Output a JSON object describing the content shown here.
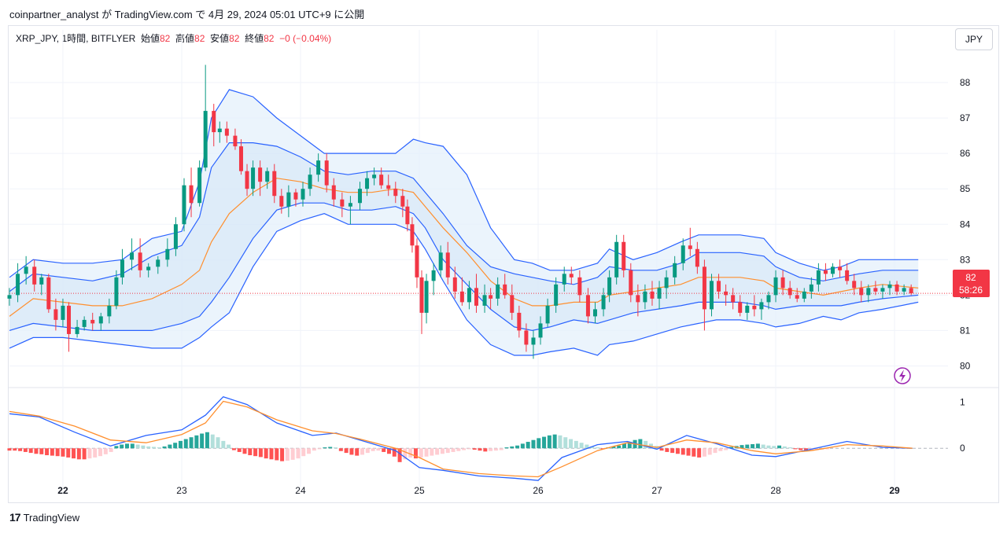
{
  "header": {
    "text": "coinpartner_analyst が TradingView.com で 4月 29, 2024 05:01 UTC+9 に公開"
  },
  "legend": {
    "symbol": "XRP_JPY, 1時間, BITFLYER",
    "open_label": "始値",
    "open_value": "82",
    "high_label": "高値",
    "high_value": "82",
    "low_label": "安値",
    "low_value": "82",
    "close_label": "終値",
    "close_value": "82",
    "change": "−0 (−0.04%)"
  },
  "currency_button": "JPY",
  "price_badge": {
    "price": "82",
    "countdown": "58:26"
  },
  "footer": {
    "brand": "TradingView",
    "logo": "17"
  },
  "colors": {
    "up": "#089981",
    "down": "#f23645",
    "band_outer": "#2962ff",
    "basis": "#ff8f2e",
    "band_fill": "#e3f0fb",
    "macd_line": "#2962ff",
    "signal_line": "#ff8f2e"
  },
  "chart_data": {
    "type": "candlestick",
    "price_axis": {
      "ticks": [
        80,
        81,
        82,
        83,
        84,
        85,
        86,
        87,
        88
      ],
      "range": [
        79.5,
        88.6
      ]
    },
    "x_axis": {
      "day_labels": [
        "22",
        "23",
        "24",
        "25",
        "26",
        "27",
        "28",
        "29"
      ],
      "range_days": [
        21.55,
        29.45
      ]
    },
    "current_price": 82.05,
    "bands_days": [
      21.55,
      21.75,
      22.0,
      22.25,
      22.5,
      22.75,
      23.0,
      23.15,
      23.25,
      23.4,
      23.6,
      23.8,
      24.0,
      24.2,
      24.4,
      24.6,
      24.8,
      24.95,
      25.05,
      25.2,
      25.4,
      25.6,
      25.8,
      25.95,
      26.1,
      26.3,
      26.5,
      26.6,
      26.8,
      27.0,
      27.2,
      27.35,
      27.5,
      27.7,
      27.9,
      28.0,
      28.2,
      28.4,
      28.55,
      28.7,
      28.9,
      29.2
    ],
    "upper_outer": [
      82.5,
      83.0,
      82.9,
      82.9,
      83.0,
      83.6,
      83.8,
      85.2,
      87.0,
      87.8,
      87.6,
      87.0,
      86.5,
      86.0,
      86.0,
      86.0,
      86.0,
      86.4,
      86.3,
      86.2,
      85.4,
      83.9,
      83.0,
      82.9,
      82.7,
      82.7,
      82.9,
      83.3,
      83.0,
      83.2,
      83.5,
      83.7,
      83.7,
      83.7,
      83.6,
      83.2,
      82.9,
      82.7,
      82.8,
      83.0,
      83.0,
      83.0
    ],
    "upper_inner": [
      82.1,
      82.6,
      82.5,
      82.4,
      82.6,
      83.1,
      83.4,
      84.2,
      85.6,
      86.3,
      86.3,
      86.2,
      85.9,
      85.5,
      85.4,
      85.5,
      85.5,
      85.3,
      84.9,
      84.3,
      83.4,
      82.8,
      82.6,
      82.5,
      82.4,
      82.3,
      82.5,
      82.8,
      82.7,
      82.7,
      82.9,
      83.2,
      83.2,
      83.2,
      83.1,
      82.8,
      82.5,
      82.4,
      82.5,
      82.6,
      82.7,
      82.7
    ],
    "basis": [
      81.4,
      81.9,
      81.8,
      81.7,
      81.7,
      81.9,
      82.3,
      82.7,
      83.5,
      84.3,
      84.9,
      85.3,
      85.2,
      85.0,
      84.9,
      84.9,
      85.0,
      84.9,
      84.5,
      83.9,
      83.2,
      82.4,
      81.9,
      81.7,
      81.7,
      81.8,
      81.8,
      82.0,
      82.1,
      82.2,
      82.3,
      82.5,
      82.5,
      82.5,
      82.4,
      82.2,
      82.1,
      82.0,
      82.1,
      82.2,
      82.3,
      82.2
    ],
    "lower_inner": [
      81.0,
      81.2,
      81.1,
      81.0,
      81.0,
      81.0,
      81.2,
      81.4,
      81.8,
      82.5,
      83.6,
      84.4,
      84.6,
      84.6,
      84.4,
      84.4,
      84.5,
      84.3,
      83.9,
      83.0,
      82.3,
      81.6,
      81.1,
      81.0,
      81.1,
      81.3,
      81.2,
      81.3,
      81.5,
      81.6,
      81.7,
      81.8,
      81.8,
      81.8,
      81.7,
      81.6,
      81.7,
      81.7,
      81.7,
      81.8,
      81.9,
      82.0
    ],
    "lower_outer": [
      80.5,
      80.8,
      80.8,
      80.7,
      80.6,
      80.5,
      80.5,
      80.8,
      81.1,
      81.5,
      82.8,
      83.8,
      84.1,
      84.3,
      84.0,
      84.0,
      84.0,
      83.8,
      83.3,
      82.4,
      81.3,
      80.6,
      80.3,
      80.3,
      80.4,
      80.5,
      80.3,
      80.6,
      80.7,
      80.9,
      81.1,
      81.2,
      81.3,
      81.3,
      81.2,
      81.1,
      81.2,
      81.4,
      81.3,
      81.5,
      81.6,
      81.8
    ],
    "candles": [
      [
        21.55,
        81.9,
        82.2,
        81.7,
        82.0
      ],
      [
        21.62,
        82.0,
        82.9,
        81.8,
        82.6
      ],
      [
        21.69,
        82.6,
        83.1,
        82.3,
        82.8
      ],
      [
        21.76,
        82.8,
        83.0,
        82.1,
        82.3
      ],
      [
        21.82,
        82.3,
        82.6,
        82.0,
        82.5
      ],
      [
        21.88,
        82.5,
        82.6,
        81.5,
        81.6
      ],
      [
        21.94,
        81.6,
        81.9,
        81.0,
        81.3
      ],
      [
        22.0,
        81.3,
        81.9,
        81.1,
        81.7
      ],
      [
        22.05,
        81.7,
        81.8,
        80.4,
        80.9
      ],
      [
        22.12,
        80.9,
        81.3,
        80.8,
        81.1
      ],
      [
        22.18,
        81.1,
        81.4,
        81.0,
        81.3
      ],
      [
        22.25,
        81.3,
        81.5,
        81.0,
        81.2
      ],
      [
        22.32,
        81.2,
        81.5,
        81.0,
        81.4
      ],
      [
        22.39,
        81.4,
        81.9,
        81.2,
        81.7
      ],
      [
        22.45,
        81.7,
        82.7,
        81.6,
        82.5
      ],
      [
        22.5,
        82.5,
        83.3,
        82.3,
        83.0
      ],
      [
        22.58,
        83.0,
        83.6,
        82.7,
        83.2
      ],
      [
        22.65,
        83.2,
        83.6,
        82.5,
        82.7
      ],
      [
        22.72,
        82.7,
        82.9,
        82.5,
        82.8
      ],
      [
        22.8,
        82.8,
        83.1,
        82.6,
        83.0
      ],
      [
        22.88,
        83.0,
        83.6,
        82.8,
        83.3
      ],
      [
        22.95,
        83.3,
        84.2,
        83.1,
        84.0
      ],
      [
        23.02,
        84.0,
        85.3,
        83.8,
        85.1
      ],
      [
        23.08,
        85.1,
        85.6,
        84.2,
        84.6
      ],
      [
        23.15,
        84.6,
        85.8,
        84.5,
        85.6
      ],
      [
        23.2,
        85.6,
        88.5,
        85.5,
        87.2
      ],
      [
        23.27,
        87.2,
        87.4,
        86.2,
        86.6
      ],
      [
        23.32,
        86.6,
        86.9,
        86.3,
        86.7
      ],
      [
        23.38,
        86.7,
        86.9,
        86.3,
        86.5
      ],
      [
        23.45,
        86.5,
        86.7,
        86.1,
        86.2
      ],
      [
        23.5,
        86.2,
        86.4,
        85.4,
        85.5
      ],
      [
        23.55,
        85.5,
        85.7,
        84.8,
        85.0
      ],
      [
        23.6,
        85.0,
        85.8,
        84.8,
        85.6
      ],
      [
        23.66,
        85.6,
        85.8,
        84.8,
        85.2
      ],
      [
        23.72,
        85.2,
        85.6,
        85.0,
        85.5
      ],
      [
        23.78,
        85.5,
        85.7,
        84.6,
        84.8
      ],
      [
        23.84,
        84.8,
        85.0,
        84.3,
        84.5
      ],
      [
        23.9,
        84.5,
        85.1,
        84.2,
        84.9
      ],
      [
        23.96,
        84.9,
        85.0,
        84.5,
        84.7
      ],
      [
        24.02,
        84.7,
        85.2,
        84.5,
        85.0
      ],
      [
        24.08,
        85.0,
        85.6,
        84.8,
        85.4
      ],
      [
        24.15,
        85.4,
        86.0,
        85.2,
        85.8
      ],
      [
        24.22,
        85.8,
        86.0,
        84.9,
        85.1
      ],
      [
        24.28,
        85.1,
        85.3,
        84.5,
        84.7
      ],
      [
        24.35,
        84.7,
        84.9,
        84.2,
        84.5
      ],
      [
        24.42,
        84.5,
        84.8,
        84.0,
        84.6
      ],
      [
        24.5,
        84.6,
        85.2,
        84.4,
        85.0
      ],
      [
        24.56,
        85.0,
        85.5,
        84.8,
        85.3
      ],
      [
        24.62,
        85.3,
        85.6,
        85.1,
        85.4
      ],
      [
        24.68,
        85.4,
        85.6,
        85.0,
        85.1
      ],
      [
        24.74,
        85.1,
        85.4,
        84.8,
        85.0
      ],
      [
        24.8,
        85.0,
        85.2,
        84.6,
        84.8
      ],
      [
        24.86,
        84.8,
        85.0,
        84.2,
        84.5
      ],
      [
        24.9,
        84.5,
        84.7,
        83.8,
        84.0
      ],
      [
        24.94,
        84.0,
        84.2,
        83.2,
        83.4
      ],
      [
        24.98,
        83.4,
        83.6,
        82.2,
        82.5
      ],
      [
        25.02,
        82.5,
        82.7,
        80.9,
        81.5
      ],
      [
        25.06,
        81.5,
        82.6,
        81.2,
        82.4
      ],
      [
        25.12,
        82.4,
        82.9,
        82.0,
        82.7
      ],
      [
        25.18,
        82.7,
        83.4,
        82.5,
        83.2
      ],
      [
        25.24,
        83.2,
        83.5,
        82.3,
        82.5
      ],
      [
        25.3,
        82.5,
        82.8,
        81.9,
        82.1
      ],
      [
        25.36,
        82.1,
        82.5,
        81.7,
        81.8
      ],
      [
        25.42,
        81.8,
        82.4,
        81.6,
        82.2
      ],
      [
        25.48,
        82.2,
        82.6,
        81.5,
        81.7
      ],
      [
        25.55,
        81.7,
        82.3,
        81.5,
        82.0
      ],
      [
        25.6,
        82.0,
        82.2,
        81.6,
        81.9
      ],
      [
        25.66,
        81.9,
        82.5,
        81.7,
        82.3
      ],
      [
        25.72,
        82.3,
        82.6,
        81.9,
        82.0
      ],
      [
        25.78,
        82.0,
        82.3,
        81.3,
        81.5
      ],
      [
        25.84,
        81.5,
        81.7,
        80.8,
        81.0
      ],
      [
        25.9,
        81.0,
        81.2,
        80.4,
        80.6
      ],
      [
        25.96,
        80.6,
        81.0,
        80.2,
        80.8
      ],
      [
        26.02,
        80.8,
        81.4,
        80.6,
        81.2
      ],
      [
        26.08,
        81.2,
        81.9,
        81.1,
        81.7
      ],
      [
        26.15,
        81.7,
        82.5,
        81.5,
        82.3
      ],
      [
        26.22,
        82.3,
        82.8,
        82.1,
        82.6
      ],
      [
        26.28,
        82.6,
        82.8,
        82.3,
        82.5
      ],
      [
        26.35,
        82.5,
        82.7,
        81.8,
        82.0
      ],
      [
        26.42,
        82.0,
        82.2,
        81.2,
        81.4
      ],
      [
        26.48,
        81.4,
        81.8,
        81.2,
        81.6
      ],
      [
        26.55,
        81.6,
        82.2,
        81.4,
        82.0
      ],
      [
        26.6,
        82.0,
        82.7,
        81.8,
        82.5
      ],
      [
        26.66,
        82.5,
        83.7,
        82.3,
        83.5
      ],
      [
        26.72,
        83.5,
        83.7,
        82.5,
        82.7
      ],
      [
        26.78,
        82.7,
        82.9,
        81.8,
        82.0
      ],
      [
        26.84,
        82.0,
        82.3,
        81.4,
        81.8
      ],
      [
        26.9,
        81.8,
        82.3,
        81.6,
        82.1
      ],
      [
        26.96,
        82.1,
        82.4,
        81.7,
        81.9
      ],
      [
        27.02,
        81.9,
        82.4,
        81.6,
        82.2
      ],
      [
        27.08,
        82.2,
        82.7,
        81.9,
        82.5
      ],
      [
        27.15,
        82.5,
        83.1,
        82.3,
        82.9
      ],
      [
        27.22,
        82.9,
        83.6,
        82.7,
        83.4
      ],
      [
        27.28,
        83.4,
        83.9,
        83.1,
        83.3
      ],
      [
        27.34,
        83.3,
        83.5,
        82.6,
        82.8
      ],
      [
        27.4,
        82.8,
        83.0,
        81.0,
        81.6
      ],
      [
        27.46,
        81.6,
        82.6,
        81.4,
        82.4
      ],
      [
        27.52,
        82.4,
        82.6,
        81.9,
        82.1
      ],
      [
        27.58,
        82.1,
        82.3,
        81.7,
        82.0
      ],
      [
        27.64,
        82.0,
        82.2,
        81.6,
        81.8
      ],
      [
        27.7,
        81.8,
        82.0,
        81.4,
        81.5
      ],
      [
        27.76,
        81.5,
        81.8,
        81.3,
        81.7
      ],
      [
        27.82,
        81.7,
        82.0,
        81.4,
        81.6
      ],
      [
        27.88,
        81.6,
        81.9,
        81.3,
        81.8
      ],
      [
        27.94,
        81.8,
        82.1,
        81.6,
        82.0
      ],
      [
        28.0,
        82.0,
        82.7,
        81.8,
        82.5
      ],
      [
        28.06,
        82.5,
        82.7,
        82.0,
        82.2
      ],
      [
        28.12,
        82.2,
        82.4,
        81.9,
        82.0
      ],
      [
        28.18,
        82.0,
        82.2,
        81.8,
        81.9
      ],
      [
        28.24,
        81.9,
        82.2,
        81.8,
        82.1
      ],
      [
        28.3,
        82.1,
        82.5,
        81.9,
        82.3
      ],
      [
        28.36,
        82.3,
        82.9,
        82.1,
        82.7
      ],
      [
        28.42,
        82.7,
        82.9,
        82.4,
        82.6
      ],
      [
        28.48,
        82.6,
        82.9,
        82.5,
        82.8
      ],
      [
        28.54,
        82.8,
        83.0,
        82.5,
        82.7
      ],
      [
        28.6,
        82.7,
        82.9,
        82.3,
        82.4
      ],
      [
        28.66,
        82.4,
        82.6,
        82.0,
        82.2
      ],
      [
        28.72,
        82.2,
        82.4,
        81.8,
        82.0
      ],
      [
        28.78,
        82.0,
        82.3,
        81.8,
        82.2
      ],
      [
        28.84,
        82.2,
        82.4,
        82.0,
        82.1
      ],
      [
        28.9,
        82.1,
        82.3,
        81.9,
        82.2
      ],
      [
        28.96,
        82.2,
        82.4,
        82.0,
        82.3
      ],
      [
        29.02,
        82.3,
        82.4,
        82.0,
        82.1
      ],
      [
        29.08,
        82.1,
        82.3,
        82.0,
        82.2
      ],
      [
        29.14,
        82.2,
        82.3,
        82.0,
        82.05
      ]
    ],
    "macd": {
      "axis_ticks": [
        0,
        1
      ],
      "range": [
        -0.85,
        1.2
      ],
      "line_days": [
        21.55,
        21.8,
        22.1,
        22.4,
        22.7,
        23.0,
        23.2,
        23.35,
        23.55,
        23.8,
        24.1,
        24.3,
        24.5,
        24.8,
        25.0,
        25.2,
        25.5,
        25.8,
        26.0,
        26.2,
        26.5,
        26.75,
        27.0,
        27.25,
        27.5,
        27.8,
        28.0,
        28.3,
        28.6,
        28.9,
        29.15
      ],
      "macd_line": [
        0.75,
        0.68,
        0.35,
        0.05,
        0.28,
        0.4,
        0.72,
        1.12,
        0.95,
        0.55,
        0.28,
        0.33,
        0.18,
        -0.05,
        -0.42,
        -0.48,
        -0.6,
        -0.65,
        -0.7,
        -0.2,
        0.08,
        0.15,
        -0.02,
        0.28,
        0.1,
        -0.15,
        -0.18,
        -0.02,
        0.15,
        0.02,
        0.0
      ],
      "signal_line": [
        0.8,
        0.7,
        0.48,
        0.18,
        0.12,
        0.3,
        0.55,
        1.02,
        0.9,
        0.62,
        0.38,
        0.32,
        0.2,
        0.0,
        -0.2,
        -0.45,
        -0.55,
        -0.6,
        -0.62,
        -0.4,
        -0.05,
        0.12,
        0.02,
        0.18,
        0.12,
        -0.05,
        -0.12,
        -0.05,
        0.08,
        0.05,
        0.0
      ],
      "histogram_from": 21.55,
      "histogram_step": 0.045,
      "histogram": [
        -0.05,
        -0.05,
        -0.06,
        -0.08,
        -0.1,
        -0.12,
        -0.13,
        -0.15,
        -0.16,
        -0.17,
        -0.18,
        -0.2,
        -0.22,
        -0.24,
        -0.24,
        -0.22,
        -0.2,
        -0.17,
        -0.13,
        -0.08,
        0.05,
        0.08,
        0.1,
        0.1,
        0.08,
        0.06,
        0.04,
        0.03,
        0.02,
        0.04,
        0.08,
        0.12,
        0.16,
        0.2,
        0.24,
        0.28,
        0.32,
        0.35,
        0.3,
        0.24,
        0.16,
        0.08,
        -0.04,
        -0.08,
        -0.12,
        -0.15,
        -0.17,
        -0.19,
        -0.22,
        -0.24,
        -0.26,
        -0.28,
        -0.27,
        -0.25,
        -0.22,
        -0.17,
        -0.12,
        -0.05,
        -0.02,
        0.02,
        0.03,
        0.02,
        -0.06,
        -0.1,
        -0.14,
        -0.16,
        -0.14,
        -0.1,
        -0.06,
        -0.05,
        -0.08,
        -0.12,
        -0.18,
        -0.3,
        -0.24,
        -0.2,
        -0.22,
        -0.2,
        -0.18,
        -0.16,
        -0.14,
        -0.12,
        -0.1,
        -0.08,
        -0.06,
        -0.04,
        -0.02,
        -0.03,
        -0.05,
        -0.07,
        -0.06,
        -0.05,
        -0.04,
        0.02,
        0.04,
        0.06,
        0.1,
        0.14,
        0.18,
        0.22,
        0.25,
        0.28,
        0.3,
        0.28,
        0.24,
        0.2,
        0.16,
        0.12,
        0.08,
        0.04,
        0.02,
        -0.02,
        0.02,
        0.04,
        0.06,
        0.1,
        0.14,
        0.18,
        0.2,
        0.16,
        0.1,
        0.05,
        -0.05,
        -0.08,
        -0.1,
        -0.12,
        -0.14,
        -0.16,
        -0.18,
        -0.2,
        -0.18,
        -0.14,
        -0.1,
        -0.06,
        -0.04,
        0.03,
        0.05,
        0.07,
        0.08,
        0.09,
        0.1,
        0.08,
        0.06,
        0.05,
        0.06,
        0.04,
        0.02,
        -0.02,
        -0.04,
        -0.06,
        -0.05,
        -0.04,
        -0.03,
        -0.02
      ]
    }
  }
}
